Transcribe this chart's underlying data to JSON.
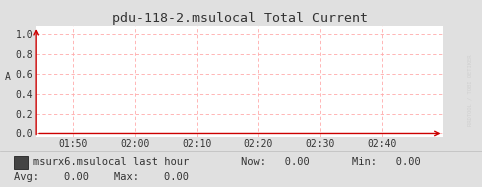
{
  "title": "pdu-118-2.msulocal Total Current",
  "ylabel": "A",
  "bg_color": "#e0e0e0",
  "plot_bg_color": "#ffffff",
  "grid_color": "#ffaaaa",
  "arrow_color": "#cc0000",
  "yticks": [
    0.0,
    0.2,
    0.4,
    0.6,
    0.8,
    1.0
  ],
  "ylim": [
    -0.04,
    1.08
  ],
  "xtick_labels": [
    "01:50",
    "02:00",
    "02:10",
    "02:20",
    "02:30",
    "02:40"
  ],
  "xlim": [
    0,
    6.6
  ],
  "xtick_positions": [
    0.6,
    1.6,
    2.6,
    3.6,
    4.6,
    5.6
  ],
  "legend_label": "msurx6.msulocal last hour",
  "legend_color": "#555555",
  "now_val": "0.00",
  "min_val": "0.00",
  "avg_val": "0.00",
  "max_val": "0.00",
  "font_family": "monospace",
  "title_fontsize": 9.5,
  "tick_fontsize": 7,
  "legend_fontsize": 7.5,
  "watermark": "RRDTOOL / TOBI OETIKER",
  "watermark_color": "#cccccc"
}
